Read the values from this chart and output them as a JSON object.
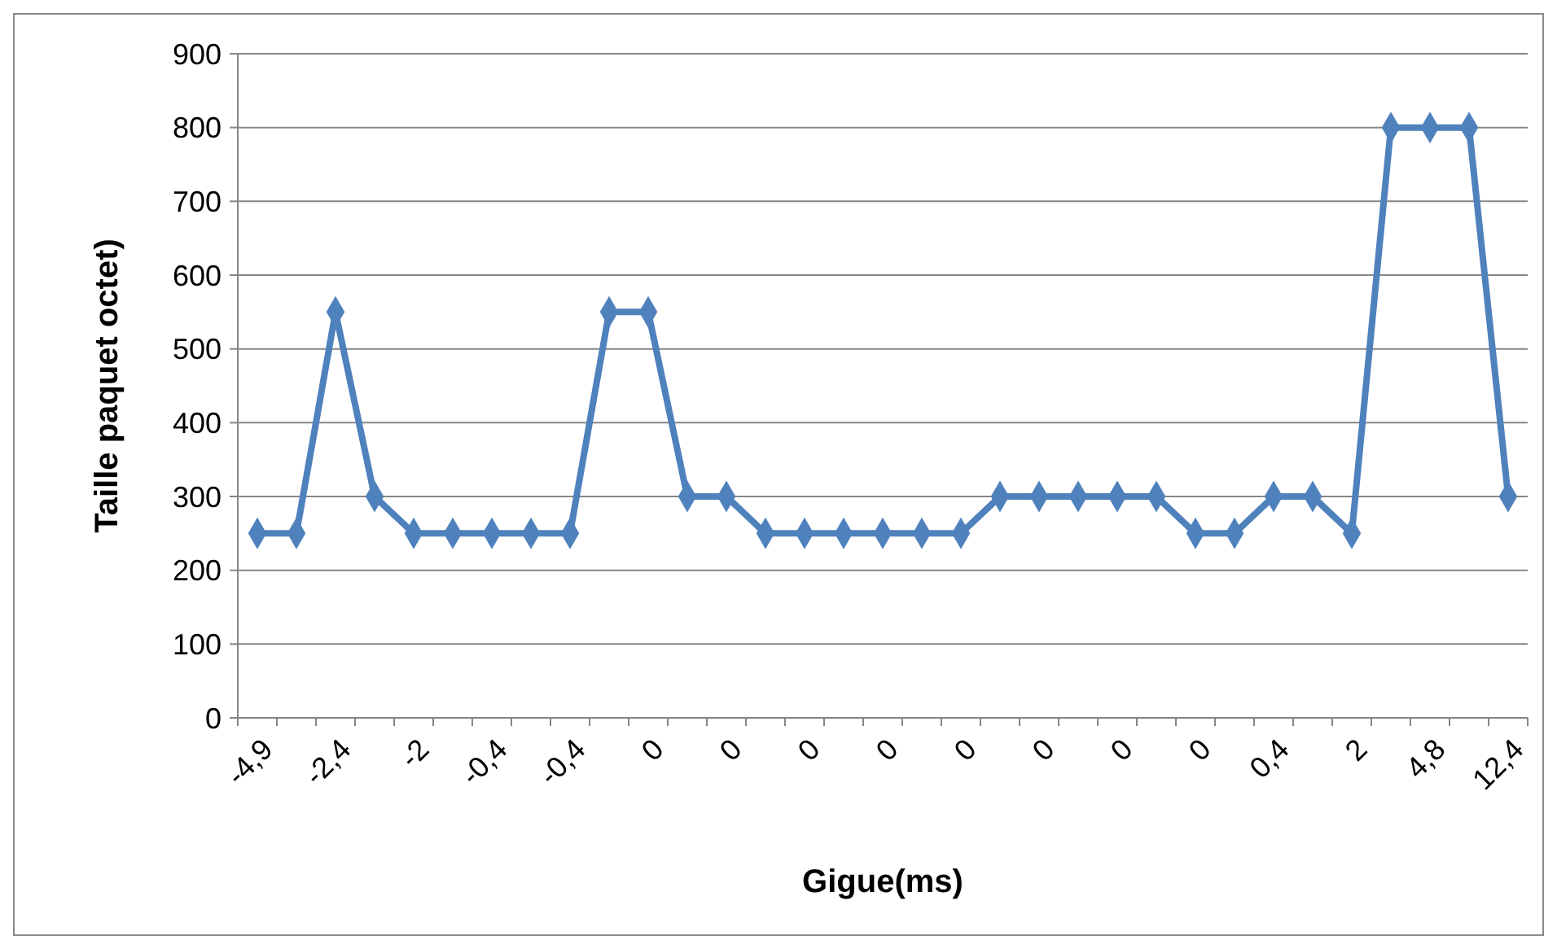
{
  "chart_data": {
    "type": "line",
    "xlabel": "Gigue(ms)",
    "ylabel": "Taille paquet octet)",
    "categories": [
      "-4,9",
      null,
      "-2,4",
      null,
      "-2",
      null,
      "-0,4",
      null,
      "-0,4",
      null,
      "0",
      null,
      "0",
      null,
      "0",
      null,
      "0",
      null,
      "0",
      null,
      "0",
      null,
      "0",
      null,
      "0",
      null,
      "0,4",
      null,
      "2",
      null,
      "4,8",
      null,
      "12,4"
    ],
    "series": [
      {
        "color": "#4f81bd",
        "values": [
          250,
          250,
          550,
          300,
          250,
          250,
          250,
          250,
          250,
          550,
          550,
          300,
          300,
          250,
          250,
          250,
          250,
          250,
          250,
          300,
          300,
          300,
          300,
          300,
          250,
          250,
          300,
          300,
          250,
          800,
          800,
          800,
          300
        ]
      }
    ],
    "ylim": [
      0,
      900
    ],
    "yticks": [
      0,
      100,
      200,
      300,
      400,
      500,
      600,
      700,
      800,
      900
    ],
    "grid": "y",
    "marker": "diamond",
    "line_style": "solid"
  }
}
